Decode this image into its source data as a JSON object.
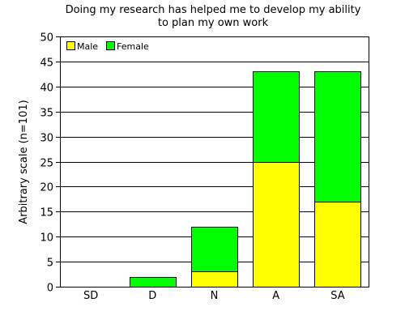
{
  "chart_data": {
    "type": "bar",
    "stacked": true,
    "title": [
      "Doing my research has helped me to develop my ability",
      "to plan my own work"
    ],
    "xlabel": "",
    "ylabel": "Arbitrary scale (n=101)",
    "categories": [
      "SD",
      "D",
      "N",
      "A",
      "SA"
    ],
    "series": [
      {
        "name": "Male",
        "color": "#ffff00",
        "values": [
          0,
          0,
          3,
          25,
          17
        ]
      },
      {
        "name": "Female",
        "color": "#00ff00",
        "values": [
          0,
          2,
          9,
          18,
          26
        ]
      }
    ],
    "ylim": [
      0,
      50
    ],
    "yticks": [
      0,
      5,
      10,
      15,
      20,
      25,
      30,
      35,
      40,
      45,
      50
    ],
    "grid": true,
    "legend_position": "top-left"
  }
}
